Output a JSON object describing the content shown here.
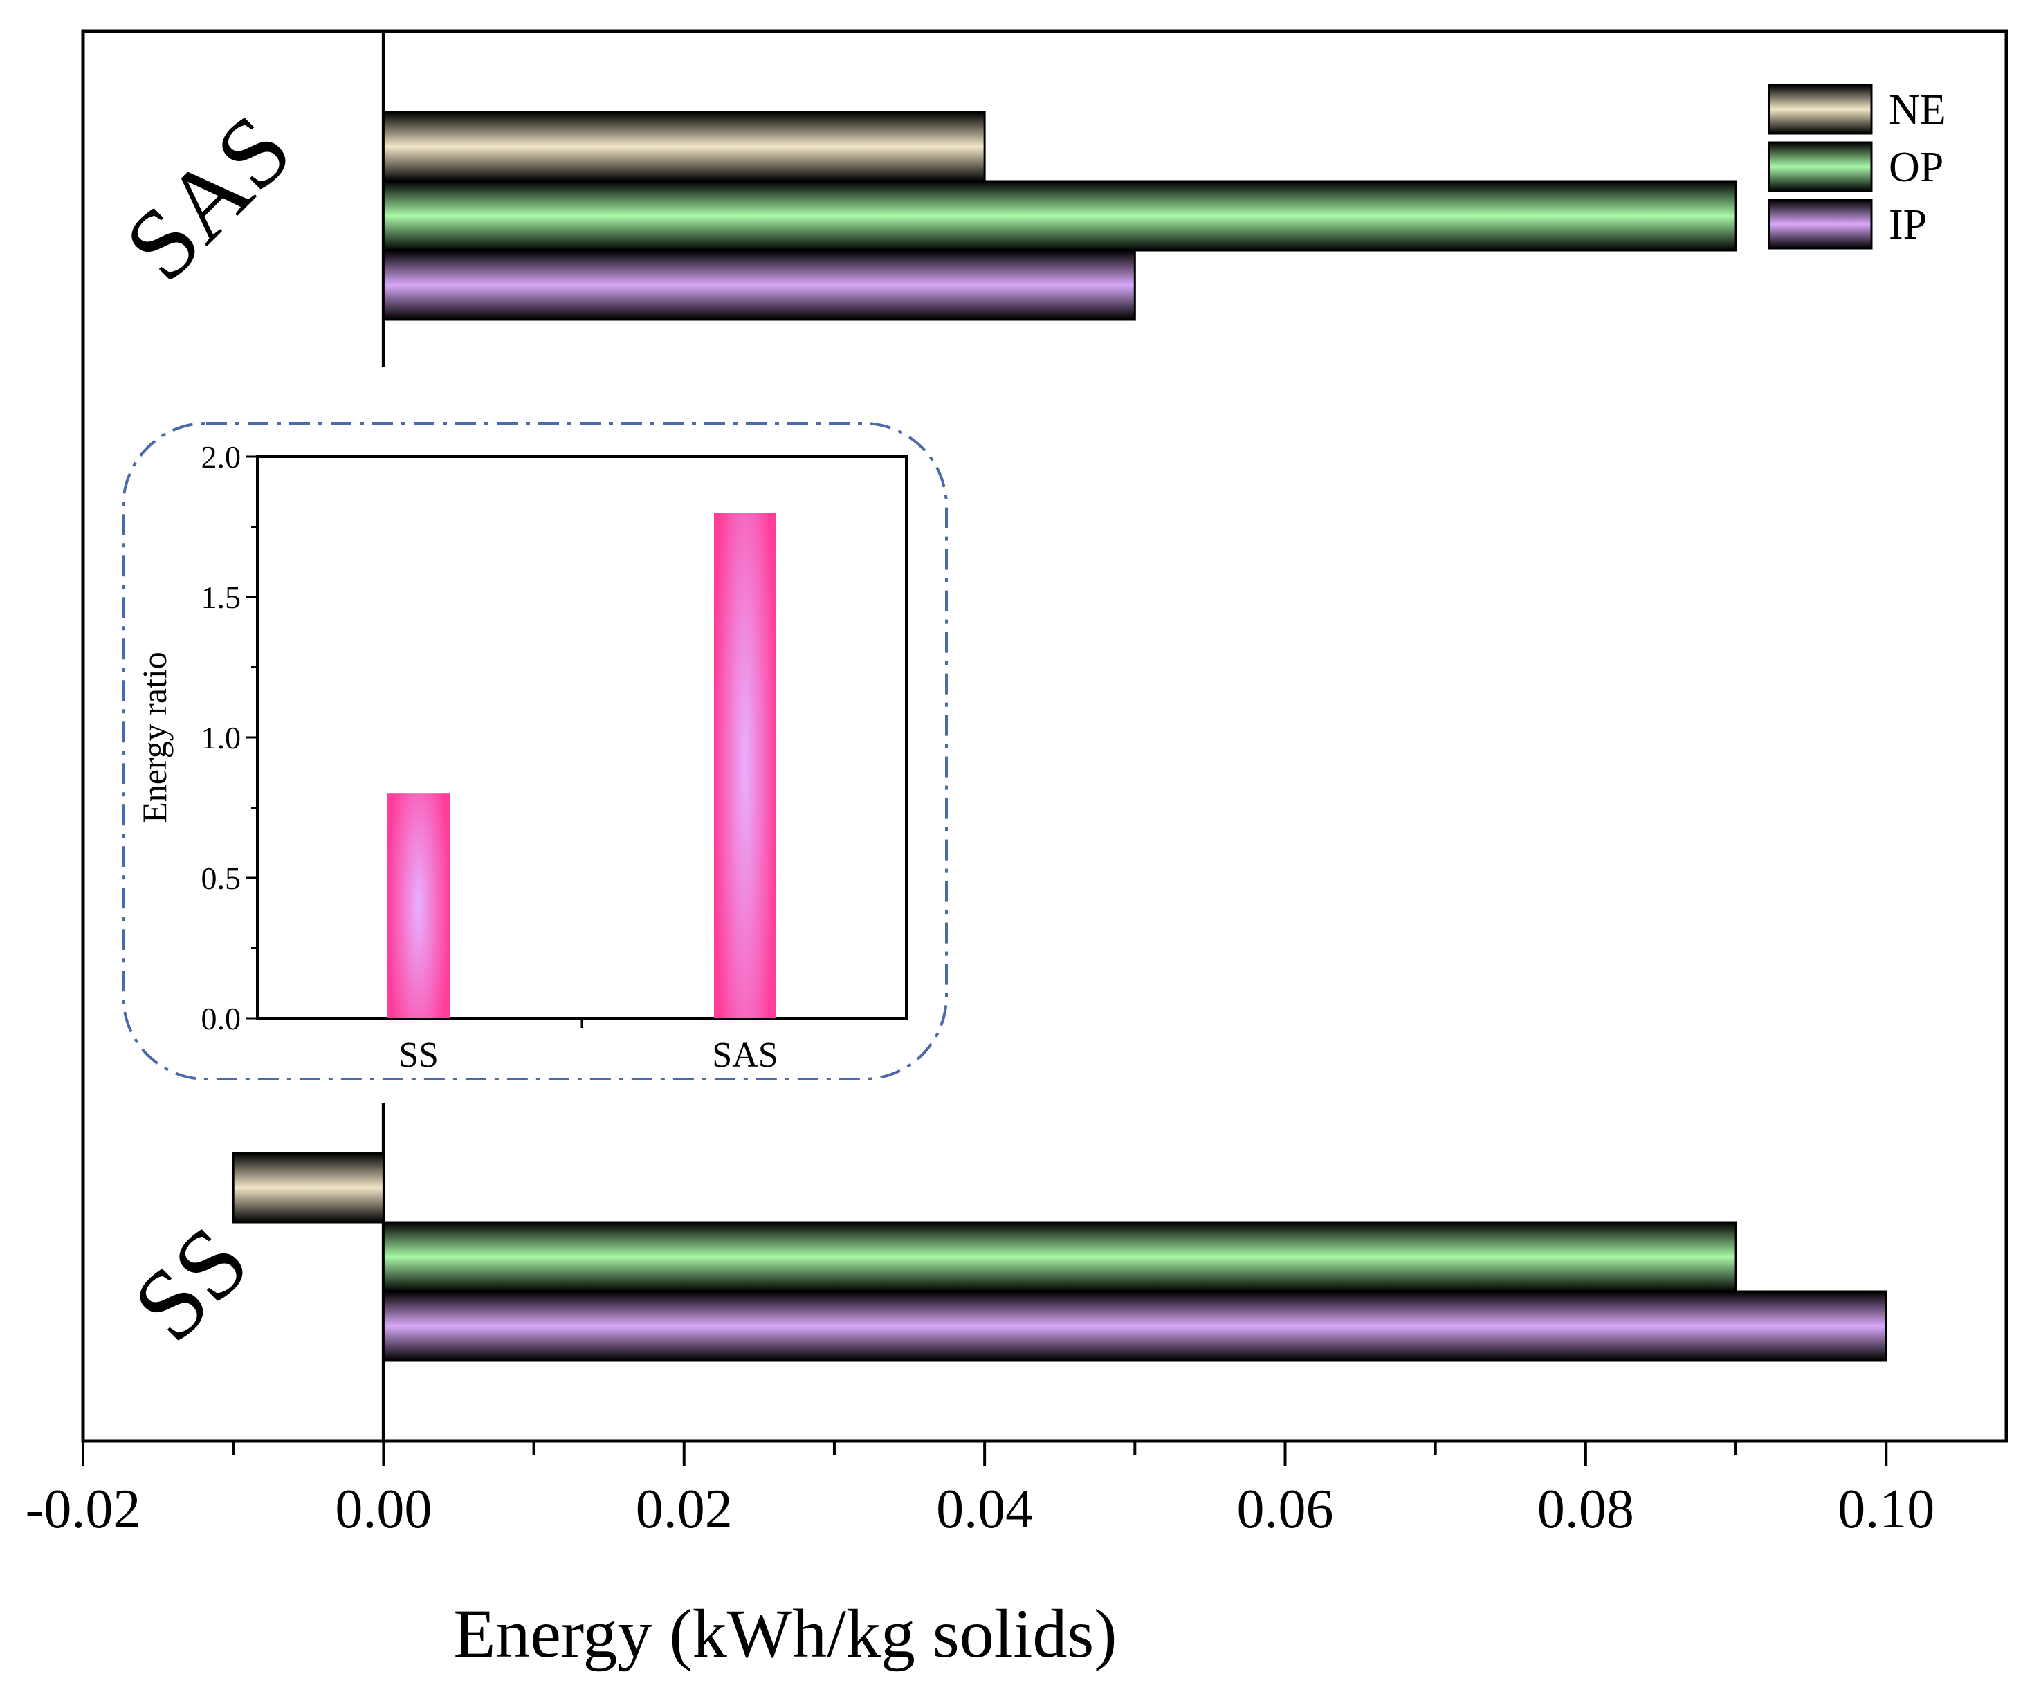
{
  "chart_data": [
    {
      "type": "bar",
      "orientation": "horizontal",
      "title": "",
      "xlabel": "Energy (kWh/kg solids)",
      "ylabel": "",
      "xlim": [
        -0.02,
        0.108
      ],
      "xticks": [
        -0.02,
        0.0,
        0.02,
        0.04,
        0.06,
        0.08,
        0.1
      ],
      "xtick_labels": [
        "-0.02",
        "0.00",
        "0.02",
        "0.04",
        "0.06",
        "0.08",
        "0.10"
      ],
      "categories": [
        "SAS",
        "SS"
      ],
      "series": [
        {
          "name": "NE",
          "values": [
            0.04,
            -0.01
          ],
          "color": "#f2e6c8"
        },
        {
          "name": "OP",
          "values": [
            0.09,
            0.09
          ],
          "color": "#a8f7a8"
        },
        {
          "name": "IP",
          "values": [
            0.05,
            0.1
          ],
          "color": "#d8a8f8"
        }
      ],
      "legend": {
        "position": "top-right",
        "entries": [
          "NE",
          "OP",
          "IP"
        ]
      },
      "grid": false
    },
    {
      "type": "bar",
      "title": "",
      "inset": true,
      "xlabel": "",
      "ylabel": "Energy ratio",
      "ylim": [
        0,
        2.0
      ],
      "yticks": [
        0.0,
        0.5,
        1.0,
        1.5,
        2.0
      ],
      "ytick_labels": [
        "0.0",
        "0.5",
        "1.0",
        "1.5",
        "2.0"
      ],
      "categories": [
        "SS",
        "SAS"
      ],
      "values": [
        0.8,
        1.8
      ],
      "color": "#ff3d9a",
      "grid": false
    }
  ]
}
